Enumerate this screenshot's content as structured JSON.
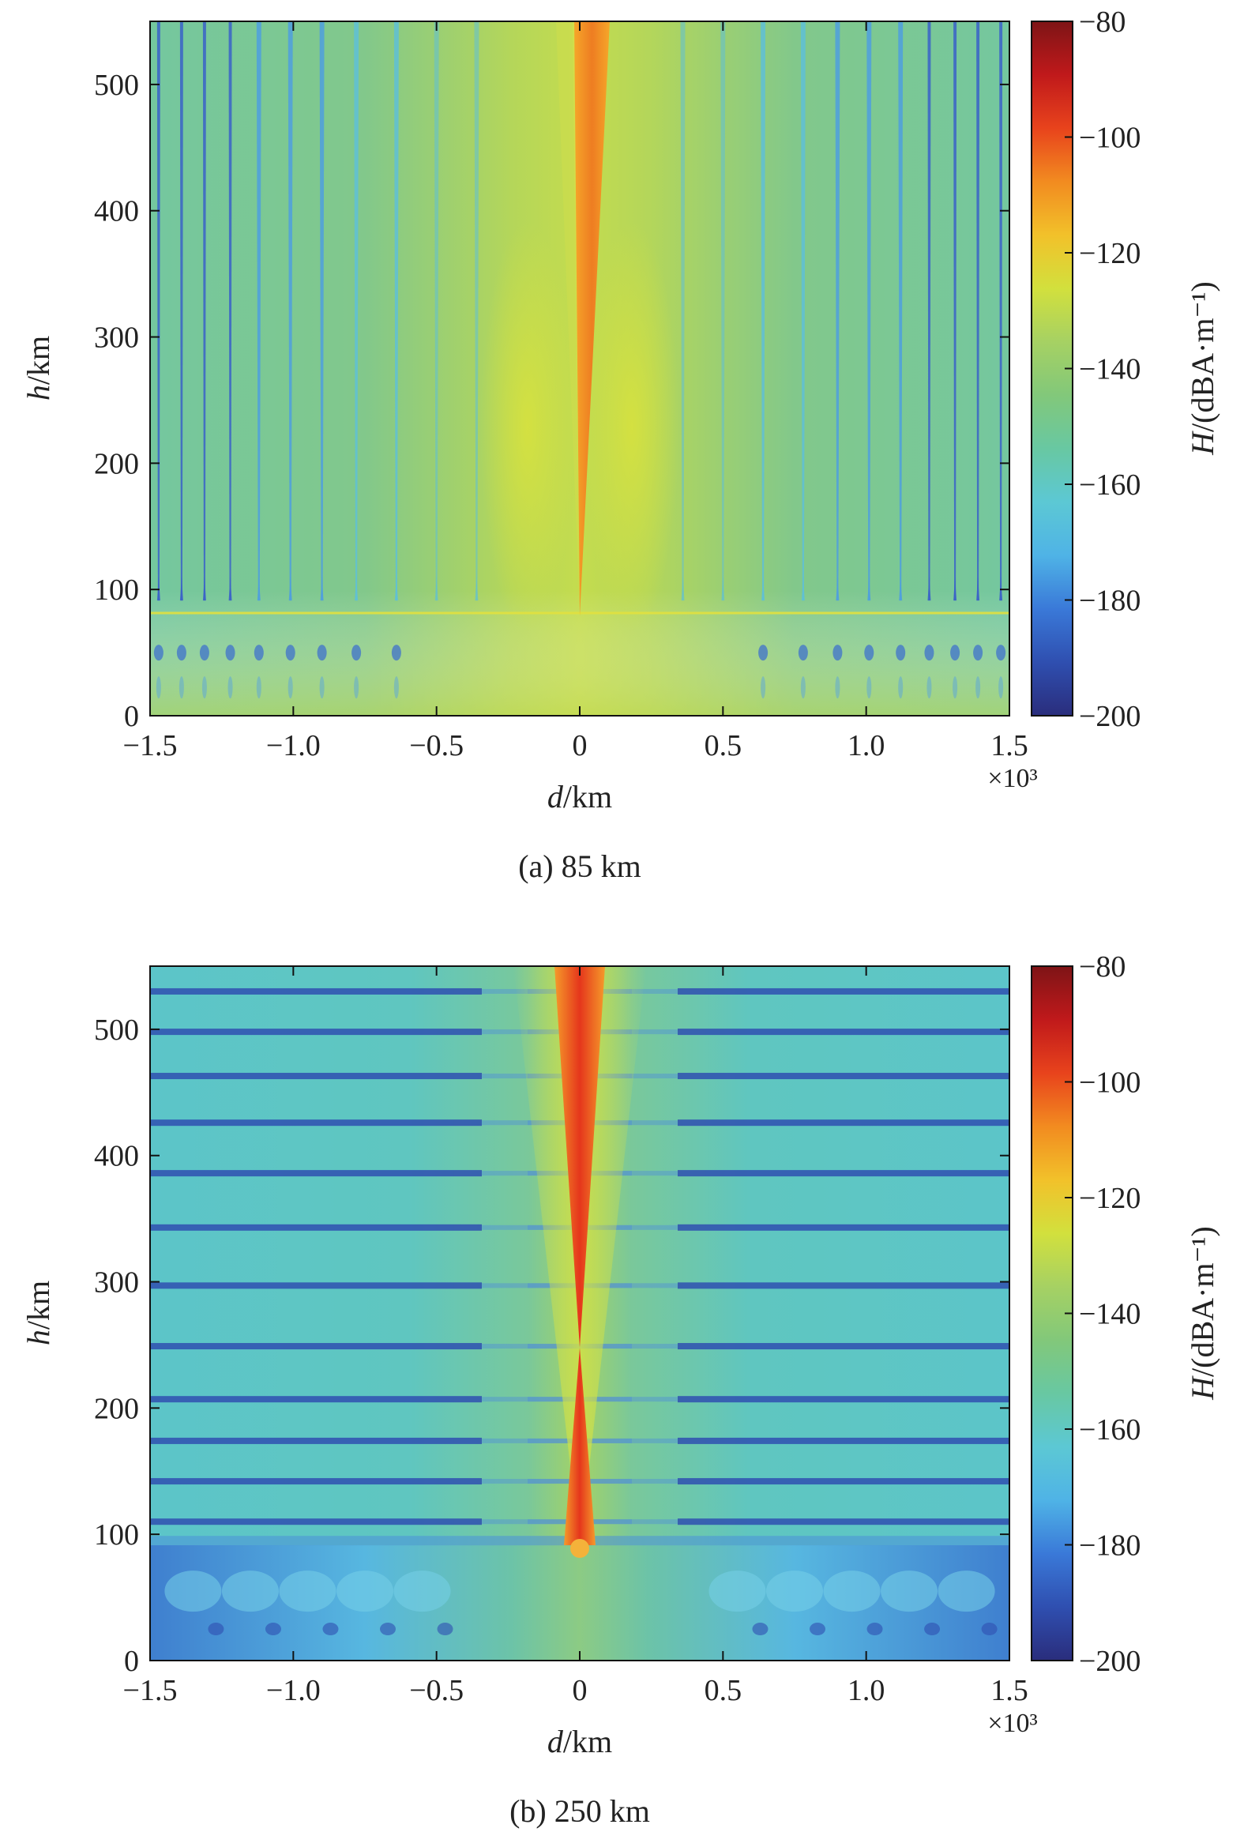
{
  "colorbar_stops": [
    "#2a2d7c",
    "#2f4fb0",
    "#3a79d8",
    "#4fb3e6",
    "#5cc8d4",
    "#68c8a2",
    "#82c87a",
    "#a6d163",
    "#d2e03d",
    "#f2c12a",
    "#f28b20",
    "#e8431c",
    "#c0191b",
    "#7e1416"
  ],
  "chart_data": [
    {
      "type": "heatmap",
      "panel": "a",
      "caption": "(a) 85 km",
      "xlabel_var": "d",
      "xlabel_unit": "/km",
      "ylabel_var": "h",
      "ylabel_unit": "/km",
      "x_multiplier": "×10³",
      "xlim": [
        -1.5,
        1.5
      ],
      "ylim": [
        0,
        550
      ],
      "xticks": [
        -1.5,
        -1.0,
        -0.5,
        0,
        0.5,
        1.0,
        1.5
      ],
      "xtick_labels": [
        "−1.5",
        "−1.0",
        "−0.5",
        "0",
        "0.5",
        "1.0",
        "1.5"
      ],
      "yticks": [
        0,
        100,
        200,
        300,
        400,
        500
      ],
      "ytick_labels": [
        "0",
        "100",
        "200",
        "300",
        "400",
        "500"
      ],
      "source_height_km": 85,
      "colorbar": {
        "label_var": "H",
        "label_unit": "/(dBA·m⁻¹)",
        "range": [
          -200,
          -80
        ],
        "ticks": [
          -80,
          -100,
          -120,
          -140,
          -160,
          -180,
          -200
        ],
        "tick_labels": [
          "−80",
          "−100",
          "−120",
          "−140",
          "−160",
          "−180",
          "−200"
        ]
      }
    },
    {
      "type": "heatmap",
      "panel": "b",
      "caption": "(b) 250 km",
      "xlabel_var": "d",
      "xlabel_unit": "/km",
      "ylabel_var": "h",
      "ylabel_unit": "/km",
      "x_multiplier": "×10³",
      "xlim": [
        -1.5,
        1.5
      ],
      "ylim": [
        0,
        550
      ],
      "xticks": [
        -1.5,
        -1.0,
        -0.5,
        0,
        0.5,
        1.0,
        1.5
      ],
      "xtick_labels": [
        "−1.5",
        "−1.0",
        "−0.5",
        "0",
        "0.5",
        "1.0",
        "1.5"
      ],
      "yticks": [
        0,
        100,
        200,
        300,
        400,
        500
      ],
      "ytick_labels": [
        "0",
        "100",
        "200",
        "300",
        "400",
        "500"
      ],
      "source_height_km": 250,
      "colorbar": {
        "label_var": "H",
        "label_unit": "/(dBA·m⁻¹)",
        "range": [
          -200,
          -80
        ],
        "ticks": [
          -80,
          -100,
          -120,
          -140,
          -160,
          -180,
          -200
        ],
        "tick_labels": [
          "−80",
          "−100",
          "−120",
          "−140",
          "−160",
          "−180",
          "−200"
        ]
      }
    }
  ]
}
